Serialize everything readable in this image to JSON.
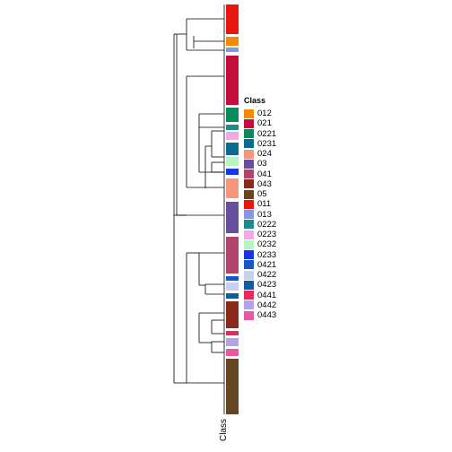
{
  "annotation": {
    "name": "Class",
    "axis_label": "Class"
  },
  "legend": {
    "title": "Class",
    "items": [
      {
        "label": "012",
        "color": "#f28a06"
      },
      {
        "label": "021",
        "color": "#c40d3b"
      },
      {
        "label": "0221",
        "color": "#0a8a5c"
      },
      {
        "label": "0231",
        "color": "#0b6a8f"
      },
      {
        "label": "024",
        "color": "#f5977c"
      },
      {
        "label": "03",
        "color": "#6a4e9e"
      },
      {
        "label": "041",
        "color": "#b2456e"
      },
      {
        "label": "043",
        "color": "#8a2a1c"
      },
      {
        "label": "05",
        "color": "#654522"
      },
      {
        "label": "011",
        "color": "#e8160d"
      },
      {
        "label": "013",
        "color": "#8597e0"
      },
      {
        "label": "0222",
        "color": "#1f8a8a"
      },
      {
        "label": "0223",
        "color": "#f2a8e6"
      },
      {
        "label": "0232",
        "color": "#b5f5bf"
      },
      {
        "label": "0233",
        "color": "#1635e6"
      },
      {
        "label": "0421",
        "color": "#1957c9"
      },
      {
        "label": "0422",
        "color": "#c8d0f2"
      },
      {
        "label": "0423",
        "color": "#125c9e"
      },
      {
        "label": "0441",
        "color": "#e82a5a"
      },
      {
        "label": "0442",
        "color": "#b3a2ec"
      },
      {
        "label": "0443",
        "color": "#e35aa0"
      }
    ]
  },
  "annotation_bar": [
    {
      "class": "011",
      "color": "#e8160d"
    },
    {
      "class": "012",
      "color": "#f28a06"
    },
    {
      "class": "013",
      "color": "#8597e0"
    },
    {
      "class": "021",
      "color": "#c40d3b"
    },
    {
      "class": "0221",
      "color": "#0a8a5c"
    },
    {
      "class": "0222",
      "color": "#1f8a8a"
    },
    {
      "class": "0223",
      "color": "#f2a8e6"
    },
    {
      "class": "0231",
      "color": "#0b6a8f"
    },
    {
      "class": "0232",
      "color": "#b5f5bf"
    },
    {
      "class": "0233",
      "color": "#1635e6"
    },
    {
      "class": "024",
      "color": "#f5977c"
    },
    {
      "class": "03",
      "color": "#6a4e9e"
    },
    {
      "class": "041",
      "color": "#b2456e"
    },
    {
      "class": "0421",
      "color": "#1957c9"
    },
    {
      "class": "0422",
      "color": "#c8d0f2"
    },
    {
      "class": "0423",
      "color": "#125c9e"
    },
    {
      "class": "043",
      "color": "#8a2a1c"
    },
    {
      "class": "0441",
      "color": "#e82a5a"
    },
    {
      "class": "0442",
      "color": "#b3a2ec"
    },
    {
      "class": "0443",
      "color": "#e35aa0"
    },
    {
      "class": "05",
      "color": "#654522"
    }
  ]
}
